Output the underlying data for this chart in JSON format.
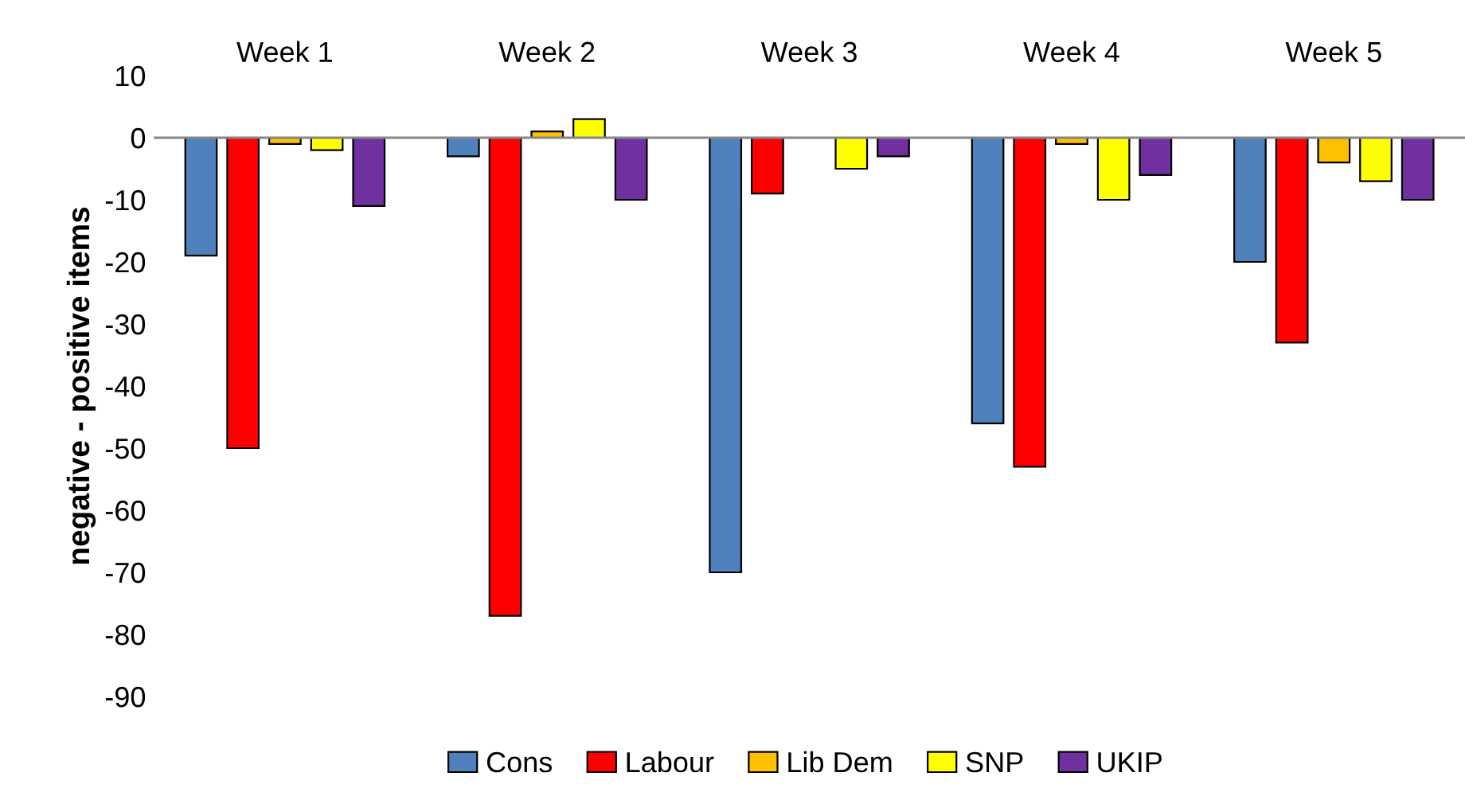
{
  "chart_data": {
    "type": "bar",
    "ylabel": "negative - positive items",
    "categories": [
      "Week 1",
      "Week 2",
      "Week 3",
      "Week 4",
      "Week 5"
    ],
    "series": [
      {
        "name": "Cons",
        "color": "#4f81bd",
        "values": [
          -19,
          -3,
          -70,
          -46,
          -20
        ]
      },
      {
        "name": "Labour",
        "color": "#ff0000",
        "values": [
          -50,
          -77,
          -9,
          -53,
          -33
        ]
      },
      {
        "name": "Lib Dem",
        "color": "#ffc000",
        "values": [
          -1,
          1,
          null,
          -1,
          -4
        ]
      },
      {
        "name": "SNP",
        "color": "#ffff00",
        "values": [
          -2,
          3,
          -5,
          -10,
          -7
        ]
      },
      {
        "name": "UKIP",
        "color": "#7030a0",
        "values": [
          -11,
          -10,
          -3,
          -6,
          -10
        ]
      }
    ],
    "ylim": [
      -90,
      10
    ],
    "yticks": [
      {
        "value": -90,
        "label": "-90"
      },
      {
        "value": -80,
        "label": "-80"
      },
      {
        "value": -70,
        "label": "-70"
      },
      {
        "value": -60,
        "label": "-60"
      },
      {
        "value": -50,
        "label": "-50"
      },
      {
        "value": -40,
        "label": "-40"
      },
      {
        "value": -30,
        "label": "-30"
      },
      {
        "value": -20,
        "label": "-20"
      },
      {
        "value": -10,
        "label": "-10"
      },
      0,
      10
    ],
    "ref_lines": [
      {
        "axis": "y",
        "value": 0,
        "color": "#868686"
      }
    ],
    "grid": false,
    "legend": "bottom"
  }
}
